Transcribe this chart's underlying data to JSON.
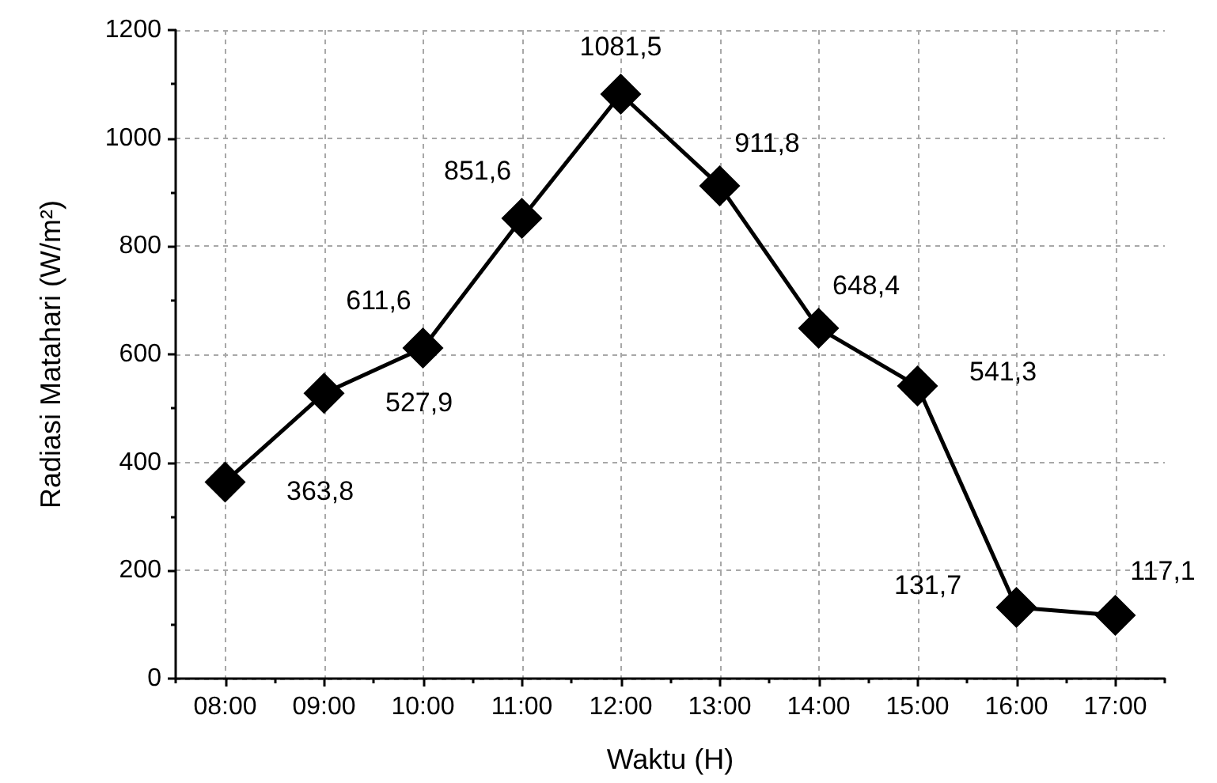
{
  "chart_data": {
    "type": "line",
    "xlabel": "Waktu (H)",
    "ylabel": "Radiasi Matahari (W/m²)",
    "categories": [
      "08:00",
      "09:00",
      "10:00",
      "11:00",
      "12:00",
      "13:00",
      "14:00",
      "15:00",
      "16:00",
      "17:00"
    ],
    "values": [
      363.8,
      527.9,
      611.6,
      851.6,
      1081.5,
      911.8,
      648.4,
      541.3,
      131.7,
      117.1
    ],
    "value_labels": [
      "363,8",
      "527,9",
      "611,6",
      "851,6",
      "1081,5",
      "911,8",
      "648,4",
      "541,3",
      "131,7",
      "117,1"
    ],
    "color": "#000000",
    "ylim": [
      0,
      1200
    ],
    "yticks": [
      0,
      {
        "value": 100,
        "label": null
      },
      200,
      {
        "value": 300,
        "label": null
      },
      400,
      {
        "value": 500,
        "label": null
      },
      600,
      {
        "value": 700,
        "label": null
      },
      800,
      {
        "value": 900,
        "label": null
      },
      1000,
      {
        "value": 1100,
        "label": null
      },
      1200
    ],
    "grid": true,
    "marker": "diamond",
    "line_style": "solid"
  }
}
